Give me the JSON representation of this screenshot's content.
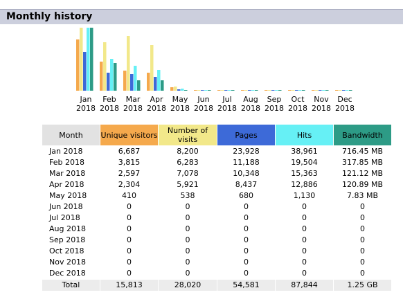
{
  "section": {
    "title": "Monthly history"
  },
  "colors": {
    "visitors": "#f5a94c",
    "visits": "#f2e88a",
    "pages": "#3d6ad8",
    "hits": "#66f0f5",
    "bandwidth": "#2d9b86",
    "month_header": "#e2e2e2"
  },
  "chart_data": {
    "type": "bar",
    "categories": [
      [
        "Jan",
        "2018"
      ],
      [
        "Feb",
        "2018"
      ],
      [
        "Mar",
        "2018"
      ],
      [
        "Apr",
        "2018"
      ],
      [
        "May",
        "2018"
      ],
      [
        "Jun",
        "2018"
      ],
      [
        "Jul",
        "2018"
      ],
      [
        "Aug",
        "2018"
      ],
      [
        "Sep",
        "2018"
      ],
      [
        "Oct",
        "2018"
      ],
      [
        "Nov",
        "2018"
      ],
      [
        "Dec",
        "2018"
      ]
    ],
    "series": [
      {
        "name": "Unique visitors",
        "values": [
          6687,
          3815,
          2597,
          2304,
          410,
          0,
          0,
          0,
          0,
          0,
          0,
          0
        ]
      },
      {
        "name": "Number of visits",
        "values": [
          8200,
          6283,
          7078,
          5921,
          538,
          0,
          0,
          0,
          0,
          0,
          0,
          0
        ]
      },
      {
        "name": "Pages",
        "values": [
          23928,
          11188,
          10348,
          8437,
          680,
          0,
          0,
          0,
          0,
          0,
          0,
          0
        ]
      },
      {
        "name": "Hits",
        "values": [
          38961,
          19504,
          15363,
          12886,
          1130,
          0,
          0,
          0,
          0,
          0,
          0,
          0
        ]
      },
      {
        "name": "Bandwidth",
        "values": [
          716.45,
          317.85,
          121.12,
          120.89,
          7.83,
          0,
          0,
          0,
          0,
          0,
          0,
          0
        ]
      }
    ]
  },
  "table": {
    "headers": {
      "month": "Month",
      "visitors": "Unique visitors",
      "visits": "Number of visits",
      "pages": "Pages",
      "hits": "Hits",
      "bandwidth": "Bandwidth"
    },
    "rows": [
      [
        "Jan 2018",
        "6,687",
        "8,200",
        "23,928",
        "38,961",
        "716.45 MB"
      ],
      [
        "Feb 2018",
        "3,815",
        "6,283",
        "11,188",
        "19,504",
        "317.85 MB"
      ],
      [
        "Mar 2018",
        "2,597",
        "7,078",
        "10,348",
        "15,363",
        "121.12 MB"
      ],
      [
        "Apr 2018",
        "2,304",
        "5,921",
        "8,437",
        "12,886",
        "120.89 MB"
      ],
      [
        "May 2018",
        "410",
        "538",
        "680",
        "1,130",
        "7.83 MB"
      ],
      [
        "Jun 2018",
        "0",
        "0",
        "0",
        "0",
        "0"
      ],
      [
        "Jul 2018",
        "0",
        "0",
        "0",
        "0",
        "0"
      ],
      [
        "Aug 2018",
        "0",
        "0",
        "0",
        "0",
        "0"
      ],
      [
        "Sep 2018",
        "0",
        "0",
        "0",
        "0",
        "0"
      ],
      [
        "Oct 2018",
        "0",
        "0",
        "0",
        "0",
        "0"
      ],
      [
        "Nov 2018",
        "0",
        "0",
        "0",
        "0",
        "0"
      ],
      [
        "Dec 2018",
        "0",
        "0",
        "0",
        "0",
        "0"
      ]
    ],
    "total": [
      "Total",
      "15,813",
      "28,020",
      "54,581",
      "87,844",
      "1.25 GB"
    ]
  }
}
